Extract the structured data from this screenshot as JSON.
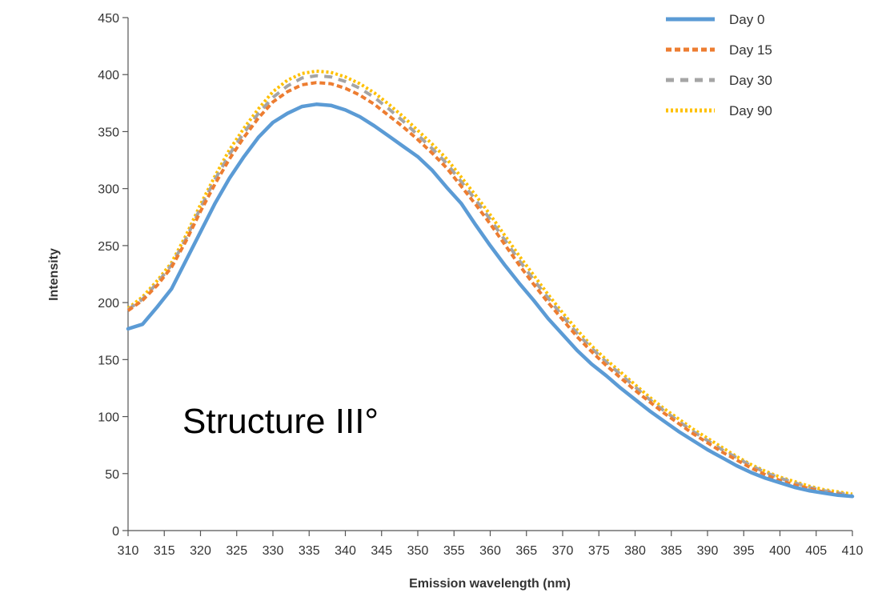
{
  "chart_data": {
    "type": "line",
    "title": "",
    "xlabel": "Emission wavelength (nm)",
    "ylabel": "Intensity",
    "xlim": [
      310,
      410
    ],
    "ylim": [
      0,
      450
    ],
    "x_ticks": [
      310,
      315,
      320,
      325,
      330,
      335,
      340,
      345,
      350,
      355,
      360,
      365,
      370,
      375,
      380,
      385,
      390,
      395,
      400,
      405,
      410
    ],
    "y_ticks": [
      0,
      50,
      100,
      150,
      200,
      250,
      300,
      350,
      400,
      450
    ],
    "grid": false,
    "legend_position": "top-right",
    "annotation": "Structure III°",
    "x": [
      310,
      312,
      314,
      316,
      318,
      320,
      322,
      324,
      326,
      328,
      330,
      332,
      334,
      336,
      338,
      340,
      342,
      344,
      346,
      348,
      350,
      352,
      354,
      356,
      358,
      360,
      362,
      364,
      366,
      368,
      370,
      372,
      374,
      376,
      378,
      380,
      382,
      384,
      386,
      388,
      390,
      392,
      394,
      396,
      398,
      400,
      402,
      404,
      406,
      408,
      410
    ],
    "series": [
      {
        "name": "Day 0",
        "color": "#5b9bd5",
        "dash": "solid",
        "values": [
          177,
          181,
          196,
          212,
          237,
          262,
          287,
          309,
          328,
          345,
          358,
          366,
          372,
          374,
          373,
          369,
          363,
          355,
          346,
          337,
          328,
          316,
          301,
          287,
          268,
          250,
          233,
          217,
          202,
          186,
          172,
          158,
          146,
          136,
          125,
          115,
          105,
          96,
          87,
          79,
          71,
          64,
          57,
          51,
          46,
          42,
          38,
          35,
          33,
          31,
          30
        ]
      },
      {
        "name": "Day 15",
        "color": "#ed7d31",
        "dash": "dashed",
        "values": [
          193,
          202,
          215,
          231,
          254,
          280,
          304,
          326,
          345,
          362,
          376,
          385,
          391,
          393,
          392,
          388,
          382,
          374,
          364,
          354,
          343,
          331,
          318,
          302,
          286,
          269,
          251,
          233,
          216,
          200,
          185,
          170,
          157,
          145,
          134,
          123,
          113,
          103,
          94,
          85,
          77,
          69,
          62,
          55,
          49,
          44,
          40,
          37,
          34,
          32,
          30
        ]
      },
      {
        "name": "Day 30",
        "color": "#a5a5a5",
        "dash": "dashed-wide",
        "values": [
          194,
          203,
          217,
          233,
          256,
          283,
          308,
          330,
          349,
          366,
          380,
          390,
          397,
          399,
          398,
          394,
          388,
          380,
          370,
          359,
          347,
          335,
          322,
          306,
          290,
          273,
          255,
          237,
          220,
          204,
          188,
          173,
          160,
          148,
          137,
          126,
          115,
          105,
          96,
          87,
          79,
          71,
          64,
          57,
          51,
          46,
          42,
          38,
          35,
          33,
          31
        ]
      },
      {
        "name": "Day 90",
        "color": "#ffc000",
        "dash": "dotted",
        "values": [
          195,
          205,
          219,
          235,
          259,
          286,
          311,
          334,
          353,
          370,
          385,
          395,
          401,
          403,
          402,
          398,
          392,
          384,
          374,
          363,
          351,
          339,
          326,
          310,
          294,
          277,
          259,
          241,
          224,
          207,
          191,
          176,
          162,
          150,
          139,
          128,
          117,
          107,
          98,
          89,
          81,
          73,
          65,
          58,
          52,
          47,
          43,
          39,
          36,
          34,
          32
        ]
      }
    ]
  }
}
